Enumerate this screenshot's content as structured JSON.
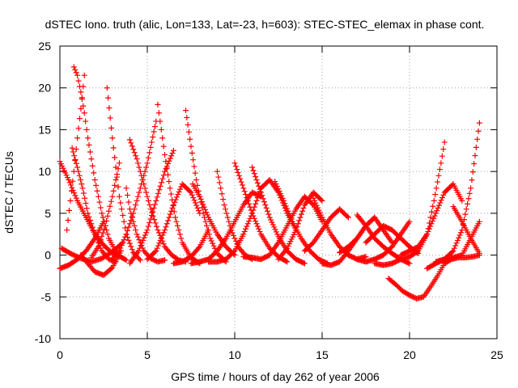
{
  "chart_data": {
    "type": "scatter",
    "title": "dSTEC Iono. truth (alic, Lon=133, Lat=-23, h=603): STEC-STEC_elemax in phase cont.",
    "xlabel": "GPS time / hours of day 262 of year 2006",
    "ylabel": "dSTEC  / TECUs",
    "xlim": [
      0,
      25
    ],
    "ylim": [
      -10,
      25
    ],
    "x_ticks": [
      0,
      5,
      10,
      15,
      20,
      25
    ],
    "y_ticks": [
      -10,
      -5,
      0,
      5,
      10,
      15,
      20,
      25
    ],
    "grid": true,
    "marker": "+",
    "color": "#ff0000",
    "series": [
      {
        "x": [
          0.0,
          0.5,
          1.0,
          1.5,
          2.0,
          2.5,
          3.0,
          3.3
        ],
        "y": [
          11.2,
          9.0,
          6.5,
          4.5,
          2.5,
          1.2,
          0.2,
          0.0
        ]
      },
      {
        "x": [
          0.1,
          0.6,
          1.2,
          1.8,
          2.4,
          3.0,
          3.6
        ],
        "y": [
          0.8,
          0.2,
          -0.4,
          -0.8,
          -0.4,
          0.4,
          1.5
        ]
      },
      {
        "x": [
          0.0,
          0.5,
          1.0,
          1.5,
          2.0,
          2.5
        ],
        "y": [
          -1.6,
          -1.2,
          -0.5,
          0.5,
          2.0,
          4.0
        ]
      },
      {
        "x": [
          0.7,
          1.0,
          1.3,
          1.6,
          2.0,
          2.4,
          2.8,
          3.2
        ],
        "y": [
          12.8,
          10.5,
          8.0,
          5.0,
          2.5,
          0.5,
          -0.5,
          -0.8
        ]
      },
      {
        "x": [
          0.8,
          1.0,
          1.2,
          1.4,
          1.6,
          2.0,
          2.4,
          2.8,
          3.3,
          3.8
        ],
        "y": [
          22.5,
          21.5,
          19.5,
          17.0,
          14.0,
          9.0,
          5.0,
          2.0,
          0.0,
          -0.6
        ]
      },
      {
        "x": [
          0.4,
          0.6,
          0.8,
          1.0,
          1.2,
          1.4
        ],
        "y": [
          3.0,
          6.5,
          10.0,
          14.0,
          17.5,
          21.5
        ]
      },
      {
        "x": [
          1.2,
          1.6,
          2.0,
          2.5,
          3.0,
          3.5
        ],
        "y": [
          0.0,
          -1.0,
          -2.0,
          -2.4,
          -1.5,
          0.5
        ]
      },
      {
        "x": [
          2.7,
          3.0,
          3.4,
          3.8,
          4.2,
          4.6
        ],
        "y": [
          20.0,
          14.0,
          7.0,
          2.5,
          0.3,
          -0.6
        ]
      },
      {
        "x": [
          1.8,
          2.2,
          2.6,
          3.0,
          3.4
        ],
        "y": [
          -0.3,
          1.0,
          3.5,
          7.0,
          11.0
        ]
      },
      {
        "x": [
          3.8,
          4.0,
          4.4,
          4.8,
          5.2,
          5.6,
          6.0
        ],
        "y": [
          8.0,
          5.5,
          2.5,
          0.5,
          -0.4,
          -0.8,
          -0.6
        ]
      },
      {
        "x": [
          4.0,
          4.4,
          4.8,
          5.2,
          5.6,
          6.0,
          6.4,
          6.8,
          7.2
        ],
        "y": [
          13.8,
          11.5,
          8.5,
          5.5,
          3.0,
          1.0,
          0.0,
          -0.6,
          -0.8
        ]
      },
      {
        "x": [
          3.0,
          3.4,
          3.8,
          4.2,
          4.6,
          5.0,
          5.5
        ],
        "y": [
          -0.5,
          0.5,
          2.5,
          5.0,
          8.0,
          11.0,
          16.0
        ]
      },
      {
        "x": [
          5.6,
          5.8,
          6.0,
          6.3,
          6.6,
          7.0,
          7.5,
          8.0
        ],
        "y": [
          18.0,
          15.0,
          12.0,
          8.0,
          4.5,
          1.5,
          -0.3,
          -1.0
        ]
      },
      {
        "x": [
          4.0,
          4.5,
          5.0,
          5.5,
          6.0,
          6.5
        ],
        "y": [
          -1.0,
          0.5,
          3.0,
          6.5,
          10.0,
          12.5
        ]
      },
      {
        "x": [
          5.0,
          5.5,
          6.0,
          6.5,
          7.0,
          7.5,
          8.0
        ],
        "y": [
          -0.5,
          0.5,
          3.0,
          6.0,
          8.5,
          7.5,
          5.0
        ]
      },
      {
        "x": [
          7.2,
          7.5,
          7.8,
          8.2,
          8.6,
          9.0,
          9.5
        ],
        "y": [
          17.3,
          13.0,
          9.0,
          5.0,
          2.0,
          0.2,
          -0.8
        ]
      },
      {
        "x": [
          7.6,
          8.0,
          8.5,
          9.0,
          9.5,
          10.0
        ],
        "y": [
          8.5,
          7.0,
          4.5,
          2.5,
          1.0,
          0.0
        ]
      },
      {
        "x": [
          6.5,
          7.0,
          7.5,
          8.0,
          8.5
        ],
        "y": [
          -1.0,
          -0.8,
          -0.2,
          1.0,
          3.0
        ]
      },
      {
        "x": [
          9.0,
          9.4,
          9.8,
          10.2,
          10.6,
          11.0
        ],
        "y": [
          10.0,
          6.0,
          3.0,
          1.0,
          0.0,
          -0.5
        ]
      },
      {
        "x": [
          7.5,
          8.0,
          8.5,
          9.0,
          9.5,
          10.0,
          10.5,
          11.0,
          11.5
        ],
        "y": [
          -1.0,
          -0.8,
          -0.5,
          0.5,
          2.0,
          4.0,
          6.0,
          7.5,
          7.0
        ]
      },
      {
        "x": [
          10.0,
          10.5,
          11.0,
          11.5,
          12.0,
          12.5,
          13.0
        ],
        "y": [
          11.0,
          8.0,
          5.0,
          2.5,
          0.8,
          -0.2,
          -0.8
        ]
      },
      {
        "x": [
          8.5,
          9.0,
          9.5,
          10.0,
          10.5,
          11.0,
          11.5,
          12.0,
          12.5,
          13.0,
          13.5
        ],
        "y": [
          -0.8,
          -0.8,
          -0.5,
          0.5,
          2.5,
          5.0,
          8.0,
          9.0,
          7.5,
          5.0,
          3.0
        ]
      },
      {
        "x": [
          11.0,
          11.5,
          12.0,
          12.5,
          13.0,
          13.5,
          14.0
        ],
        "y": [
          10.5,
          7.5,
          4.5,
          2.2,
          0.5,
          -0.5,
          -1.0
        ]
      },
      {
        "x": [
          12.5,
          13.0,
          13.5,
          14.0,
          14.5,
          15.0
        ],
        "y": [
          -0.5,
          0.8,
          3.0,
          6.0,
          7.5,
          6.5
        ]
      },
      {
        "x": [
          12.3,
          12.8,
          13.3,
          13.8,
          14.3,
          14.8,
          15.3
        ],
        "y": [
          8.8,
          6.5,
          4.0,
          2.0,
          0.5,
          -0.5,
          -1.0
        ]
      },
      {
        "x": [
          10.5,
          11.0,
          11.5,
          12.0,
          12.5,
          13.0,
          13.5,
          14.0,
          14.5,
          15.0
        ],
        "y": [
          -0.2,
          -0.3,
          -0.5,
          0.0,
          1.5,
          3.5,
          5.5,
          7.0,
          6.0,
          4.0
        ]
      },
      {
        "x": [
          14.5,
          15.0,
          15.5,
          16.0,
          16.5,
          17.0,
          17.5
        ],
        "y": [
          6.8,
          4.5,
          2.5,
          1.0,
          0.0,
          -0.5,
          -0.2
        ]
      },
      {
        "x": [
          14.0,
          14.5,
          15.0,
          15.5,
          16.0,
          16.5
        ],
        "y": [
          0.5,
          1.5,
          3.0,
          4.5,
          5.5,
          4.5
        ]
      },
      {
        "x": [
          15.0,
          15.5,
          16.0,
          16.5,
          17.0,
          17.5,
          18.0
        ],
        "y": [
          -1.0,
          -1.2,
          -0.8,
          0.5,
          2.0,
          3.5,
          4.5
        ]
      },
      {
        "x": [
          16.0,
          16.5,
          17.0,
          17.5,
          18.0,
          18.5,
          19.0
        ],
        "y": [
          0.3,
          1.0,
          2.0,
          3.5,
          4.5,
          3.0,
          1.5
        ]
      },
      {
        "x": [
          17.0,
          17.5,
          18.0,
          18.5,
          19.0,
          19.5,
          20.0
        ],
        "y": [
          4.8,
          3.5,
          2.0,
          1.0,
          0.2,
          -0.5,
          -1.0
        ]
      },
      {
        "x": [
          17.0,
          17.5,
          18.0,
          18.5,
          19.0,
          19.5,
          20.0
        ],
        "y": [
          -0.5,
          -0.8,
          -0.5,
          0.0,
          1.0,
          2.5,
          4.0
        ]
      },
      {
        "x": [
          17.5,
          18.0,
          18.5,
          19.0,
          19.5,
          20.0,
          20.5
        ],
        "y": [
          1.5,
          2.5,
          3.5,
          3.0,
          2.0,
          1.0,
          0.2
        ]
      },
      {
        "x": [
          18.8,
          19.2,
          19.6,
          20.0,
          20.4,
          20.8,
          21.2,
          21.6,
          22.0,
          22.4,
          22.8,
          23.2,
          23.6,
          24.0
        ],
        "y": [
          -2.8,
          -3.5,
          -4.3,
          -4.8,
          -5.2,
          -5.0,
          -3.8,
          -2.5,
          -1.0,
          -0.5,
          -0.3,
          -0.3,
          -0.2,
          0.0
        ]
      },
      {
        "x": [
          18.0,
          18.5,
          19.0,
          19.5,
          20.0,
          20.5,
          21.0,
          21.4,
          21.8,
          22.0
        ],
        "y": [
          -1.0,
          -1.2,
          -1.0,
          -0.5,
          -0.2,
          0.5,
          2.5,
          6.5,
          11.0,
          13.5
        ]
      },
      {
        "x": [
          19.5,
          20.0,
          20.5,
          21.0,
          21.5,
          22.0,
          22.5,
          23.0
        ],
        "y": [
          0.0,
          0.5,
          1.0,
          2.5,
          5.0,
          7.5,
          8.5,
          6.5
        ]
      },
      {
        "x": [
          21.0,
          21.5,
          22.0,
          22.5,
          23.0,
          23.5,
          24.0
        ],
        "y": [
          -1.6,
          -1.0,
          -0.5,
          -0.3,
          0.0,
          2.0,
          4.0
        ]
      },
      {
        "x": [
          21.5,
          22.0,
          22.5,
          23.0,
          23.5,
          24.0
        ],
        "y": [
          -0.8,
          -0.5,
          0.5,
          3.0,
          8.0,
          15.8
        ]
      },
      {
        "x": [
          22.5,
          23.0,
          23.5,
          24.0
        ],
        "y": [
          5.8,
          4.0,
          2.0,
          0.2
        ]
      }
    ]
  }
}
